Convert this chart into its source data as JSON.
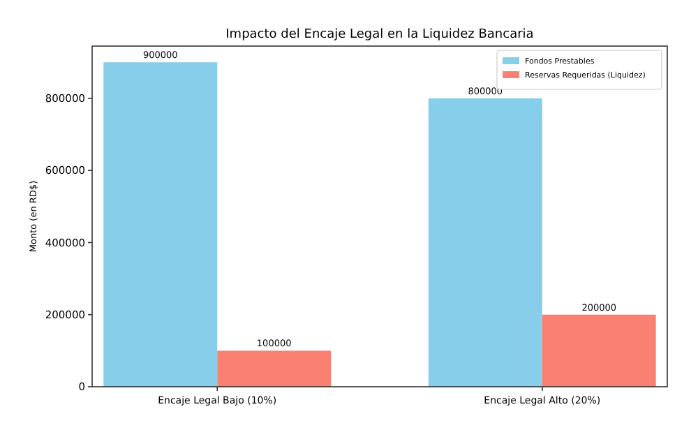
{
  "chart_data": {
    "type": "bar",
    "title": "Impacto del Encaje Legal en la Liquidez Bancaria",
    "ylabel": "Monto (en RD$)",
    "categories": [
      "Encaje Legal Bajo (10%)",
      "Encaje Legal Alto (20%)"
    ],
    "series": [
      {
        "name": "Fondos Prestables",
        "color": "#87ceeb",
        "values": [
          900000,
          800000
        ]
      },
      {
        "name": "Reservas Requeridas (Liquidez)",
        "color": "#fa8072",
        "values": [
          100000,
          200000
        ]
      }
    ],
    "ylim": [
      0,
      945000
    ],
    "yticks": [
      0,
      200000,
      400000,
      600000,
      800000
    ],
    "data_labels": true,
    "legend": "top right",
    "grid": false
  }
}
